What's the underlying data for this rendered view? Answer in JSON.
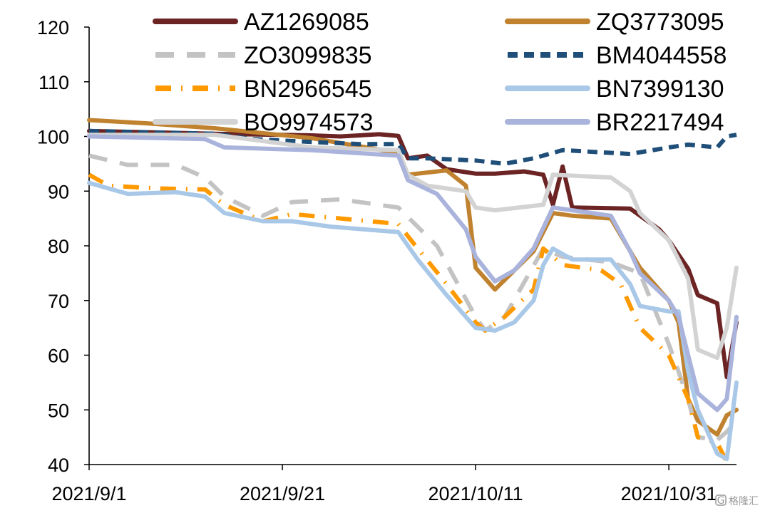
{
  "chart_data": {
    "type": "line",
    "title": "",
    "xlabel": "",
    "ylabel": "",
    "ylim": [
      40,
      120
    ],
    "yticks": [
      "40",
      "50",
      "60",
      "70",
      "80",
      "90",
      "100",
      "110",
      "120"
    ],
    "xlim": [
      "2021-09-01",
      "2021-11-07"
    ],
    "xticks": [
      {
        "date": "2021-09-01",
        "label": "2021/9/1"
      },
      {
        "date": "2021-09-21",
        "label": "2021/9/21"
      },
      {
        "date": "2021-10-11",
        "label": "2021/10/11"
      },
      {
        "date": "2021-10-31",
        "label": "2021/10/31"
      }
    ],
    "grid": false,
    "legend_position": "top",
    "series": [
      {
        "name": "AZ1269085",
        "color": "#6b2323",
        "dash": "solid",
        "points": [
          [
            "2021-09-01",
            101
          ],
          [
            "2021-09-14",
            100.5
          ],
          [
            "2021-09-24",
            100.2
          ],
          [
            "2021-09-27",
            100
          ],
          [
            "2021-10-01",
            100.4
          ],
          [
            "2021-10-03",
            100.1
          ],
          [
            "2021-10-04",
            96
          ],
          [
            "2021-10-06",
            96.5
          ],
          [
            "2021-10-08",
            94
          ],
          [
            "2021-10-11",
            93.2
          ],
          [
            "2021-10-13",
            93.2
          ],
          [
            "2021-10-16",
            93.6
          ],
          [
            "2021-10-18",
            93
          ],
          [
            "2021-10-19",
            87.5
          ],
          [
            "2021-10-20",
            94.5
          ],
          [
            "2021-10-21",
            87
          ],
          [
            "2021-10-27",
            86.8
          ],
          [
            "2021-10-30",
            83
          ],
          [
            "2021-10-31",
            81
          ],
          [
            "2021-11-02",
            75.8
          ],
          [
            "2021-11-03",
            71
          ],
          [
            "2021-11-05",
            69.5
          ],
          [
            "2021-11-06",
            56
          ],
          [
            "2021-11-07",
            66
          ]
        ]
      },
      {
        "name": "ZQ3773095",
        "color": "#c0822e",
        "dash": "solid",
        "points": [
          [
            "2021-09-01",
            103
          ],
          [
            "2021-09-07",
            102.4
          ],
          [
            "2021-09-14",
            101.5
          ],
          [
            "2021-09-24",
            99.7
          ],
          [
            "2021-10-03",
            97
          ],
          [
            "2021-10-04",
            93
          ],
          [
            "2021-10-08",
            93.8
          ],
          [
            "2021-10-10",
            91
          ],
          [
            "2021-10-11",
            76
          ],
          [
            "2021-10-13",
            72
          ],
          [
            "2021-10-17",
            79
          ],
          [
            "2021-10-19",
            86
          ],
          [
            "2021-10-21",
            85.5
          ],
          [
            "2021-10-25",
            85
          ],
          [
            "2021-10-28",
            76
          ],
          [
            "2021-10-31",
            70
          ],
          [
            "2021-11-01",
            66
          ],
          [
            "2021-11-02",
            52
          ],
          [
            "2021-11-03",
            48
          ],
          [
            "2021-11-05",
            45.5
          ],
          [
            "2021-11-06",
            49
          ],
          [
            "2021-11-07",
            50
          ]
        ]
      },
      {
        "name": "ZO3099835",
        "color": "#c3c3c3",
        "dash": "long",
        "points": [
          [
            "2021-09-01",
            96.5
          ],
          [
            "2021-09-05",
            94.8
          ],
          [
            "2021-09-10",
            94.8
          ],
          [
            "2021-09-13",
            92.5
          ],
          [
            "2021-09-15",
            89
          ],
          [
            "2021-09-19",
            85.5
          ],
          [
            "2021-09-22",
            88
          ],
          [
            "2021-09-27",
            88.5
          ],
          [
            "2021-10-03",
            87
          ],
          [
            "2021-10-07",
            80
          ],
          [
            "2021-10-11",
            67
          ],
          [
            "2021-10-12",
            64.5
          ],
          [
            "2021-10-14",
            67
          ],
          [
            "2021-10-18",
            79.5
          ],
          [
            "2021-10-20",
            78
          ],
          [
            "2021-10-25",
            77
          ],
          [
            "2021-10-28",
            75
          ],
          [
            "2021-10-31",
            62
          ],
          [
            "2021-11-02",
            52
          ],
          [
            "2021-11-03",
            45
          ],
          [
            "2021-11-05",
            44.5
          ],
          [
            "2021-11-06",
            46
          ],
          [
            "2021-11-07",
            48
          ]
        ]
      },
      {
        "name": "BM4044558",
        "color": "#1f4e78",
        "dash": "short",
        "points": [
          [
            "2021-09-01",
            101
          ],
          [
            "2021-09-14",
            100.5
          ],
          [
            "2021-09-18",
            99.5
          ],
          [
            "2021-09-24",
            99
          ],
          [
            "2021-09-29",
            98.6
          ],
          [
            "2021-10-03",
            98.6
          ],
          [
            "2021-10-04",
            96
          ],
          [
            "2021-10-06",
            96
          ],
          [
            "2021-10-11",
            95.6
          ],
          [
            "2021-10-14",
            95
          ],
          [
            "2021-10-17",
            96
          ],
          [
            "2021-10-20",
            97.5
          ],
          [
            "2021-10-27",
            96.8
          ],
          [
            "2021-10-31",
            98
          ],
          [
            "2021-11-02",
            98.5
          ],
          [
            "2021-11-05",
            98
          ],
          [
            "2021-11-06",
            100
          ],
          [
            "2021-11-07",
            100.3
          ]
        ]
      },
      {
        "name": "BN2966545",
        "color": "#ff9900",
        "dash": "dashdot",
        "points": [
          [
            "2021-09-01",
            93
          ],
          [
            "2021-09-03",
            91
          ],
          [
            "2021-09-08",
            90.5
          ],
          [
            "2021-09-13",
            90.3
          ],
          [
            "2021-09-15",
            87.5
          ],
          [
            "2021-09-19",
            84.5
          ],
          [
            "2021-09-22",
            85.8
          ],
          [
            "2021-09-27",
            85
          ],
          [
            "2021-10-03",
            84
          ],
          [
            "2021-10-05",
            79.5
          ],
          [
            "2021-10-08",
            73
          ],
          [
            "2021-10-11",
            66
          ],
          [
            "2021-10-12",
            64.5
          ],
          [
            "2021-10-14",
            67
          ],
          [
            "2021-10-17",
            72
          ],
          [
            "2021-10-18",
            79.5
          ],
          [
            "2021-10-20",
            76.5
          ],
          [
            "2021-10-24",
            75.5
          ],
          [
            "2021-10-26",
            73
          ],
          [
            "2021-10-28",
            65
          ],
          [
            "2021-10-31",
            60
          ],
          [
            "2021-11-02",
            52
          ],
          [
            "2021-11-03",
            45
          ],
          [
            "2021-11-05",
            44
          ],
          [
            "2021-11-06",
            40.5
          ]
        ]
      },
      {
        "name": "BN7399130",
        "color": "#a9c8e8",
        "dash": "solid",
        "points": [
          [
            "2021-09-01",
            91.5
          ],
          [
            "2021-09-05",
            89.5
          ],
          [
            "2021-09-10",
            89.8
          ],
          [
            "2021-09-13",
            89
          ],
          [
            "2021-09-15",
            86
          ],
          [
            "2021-09-19",
            84.5
          ],
          [
            "2021-09-22",
            84.5
          ],
          [
            "2021-09-26",
            83.5
          ],
          [
            "2021-10-03",
            82.5
          ],
          [
            "2021-10-05",
            77.5
          ],
          [
            "2021-10-08",
            71
          ],
          [
            "2021-10-11",
            65
          ],
          [
            "2021-10-13",
            64.5
          ],
          [
            "2021-10-15",
            66
          ],
          [
            "2021-10-17",
            70
          ],
          [
            "2021-10-18",
            76.5
          ],
          [
            "2021-10-19",
            79.5
          ],
          [
            "2021-10-21",
            77.5
          ],
          [
            "2021-10-25",
            77.5
          ],
          [
            "2021-10-27",
            73
          ],
          [
            "2021-10-28",
            69
          ],
          [
            "2021-10-31",
            68
          ],
          [
            "2021-11-01",
            68
          ],
          [
            "2021-11-02",
            57
          ],
          [
            "2021-11-03",
            50
          ],
          [
            "2021-11-05",
            42
          ],
          [
            "2021-11-06",
            41
          ],
          [
            "2021-11-07",
            55
          ]
        ]
      },
      {
        "name": "BO9974573",
        "color": "#d3d3d3",
        "dash": "solid",
        "points": [
          [
            "2021-09-01",
            100.3
          ],
          [
            "2021-09-14",
            100.3
          ],
          [
            "2021-09-24",
            98
          ],
          [
            "2021-10-03",
            97.5
          ],
          [
            "2021-10-04",
            93
          ],
          [
            "2021-10-06",
            91
          ],
          [
            "2021-10-10",
            90
          ],
          [
            "2021-10-11",
            87
          ],
          [
            "2021-10-13",
            86.5
          ],
          [
            "2021-10-18",
            87.5
          ],
          [
            "2021-10-19",
            93
          ],
          [
            "2021-10-25",
            92.5
          ],
          [
            "2021-10-27",
            90
          ],
          [
            "2021-10-28",
            86
          ],
          [
            "2021-10-31",
            81
          ],
          [
            "2021-11-02",
            74
          ],
          [
            "2021-11-03",
            61
          ],
          [
            "2021-11-05",
            59.5
          ],
          [
            "2021-11-06",
            65
          ],
          [
            "2021-11-07",
            76
          ]
        ]
      },
      {
        "name": "BR2217494",
        "color": "#a9b3db",
        "dash": "solid",
        "points": [
          [
            "2021-09-01",
            100
          ],
          [
            "2021-09-13",
            99.5
          ],
          [
            "2021-09-15",
            98
          ],
          [
            "2021-09-24",
            97.5
          ],
          [
            "2021-10-03",
            96.5
          ],
          [
            "2021-10-04",
            92
          ],
          [
            "2021-10-07",
            89.5
          ],
          [
            "2021-10-10",
            83
          ],
          [
            "2021-10-11",
            78
          ],
          [
            "2021-10-13",
            73.5
          ],
          [
            "2021-10-15",
            75.5
          ],
          [
            "2021-10-17",
            79.5
          ],
          [
            "2021-10-19",
            87
          ],
          [
            "2021-10-21",
            86.5
          ],
          [
            "2021-10-25",
            85.5
          ],
          [
            "2021-10-27",
            79
          ],
          [
            "2021-10-28",
            75
          ],
          [
            "2021-10-31",
            70
          ],
          [
            "2021-11-01",
            67
          ],
          [
            "2021-11-02",
            60
          ],
          [
            "2021-11-03",
            53
          ],
          [
            "2021-11-05",
            50
          ],
          [
            "2021-11-06",
            52
          ],
          [
            "2021-11-07",
            67
          ]
        ]
      }
    ]
  },
  "watermark": {
    "text": "格隆汇",
    "icon": "logo-glyph",
    "icon_text": "G"
  }
}
